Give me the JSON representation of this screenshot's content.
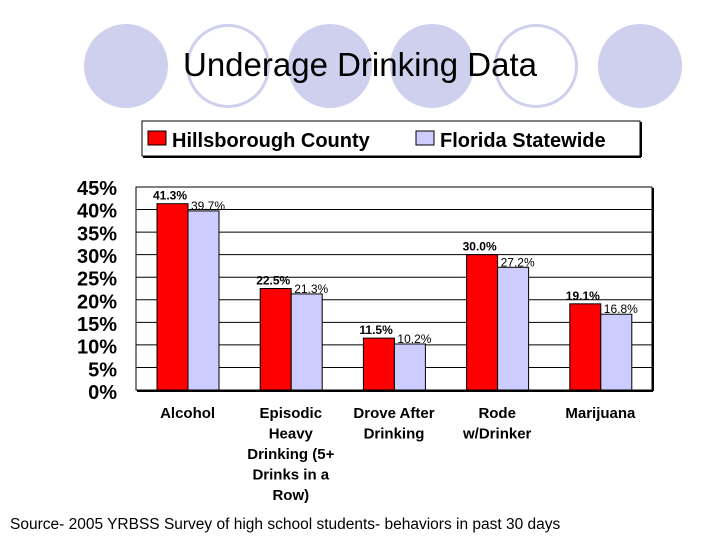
{
  "title": "Underage Drinking Data",
  "source": "Source- 2005 YRBSS Survey of high school students- behaviors in past 30 days",
  "colors": {
    "hillsborough": "#ff0000",
    "florida": "#ccccff",
    "decor": "#cfd0ee"
  },
  "chart_data": {
    "type": "bar",
    "categories": [
      [
        "Alcohol"
      ],
      [
        "Episodic",
        "Heavy",
        "Drinking (5+",
        "Drinks in a",
        "Row)"
      ],
      [
        "Drove After",
        "Drinking"
      ],
      [
        "Rode",
        "w/Drinker"
      ],
      [
        "Marijuana"
      ]
    ],
    "series": [
      {
        "name": "Hillsborough County",
        "values": [
          41.3,
          22.5,
          11.5,
          30.0,
          19.1
        ],
        "labels": [
          "41.3%",
          "22.5%",
          "11.5%",
          "30.0%",
          "19.1%"
        ]
      },
      {
        "name": "Florida Statewide",
        "values": [
          39.7,
          21.3,
          10.2,
          27.2,
          16.8
        ],
        "labels": [
          "39.7%",
          "21.3%",
          "10.2%",
          "27.2%",
          "16.8%"
        ]
      }
    ],
    "yticks": [
      "45%",
      "40%",
      "35%",
      "30%",
      "25%",
      "20%",
      "15%",
      "10%",
      "5%",
      "0%"
    ],
    "ylim": [
      0,
      45
    ],
    "legend_position": "top",
    "grid": true
  }
}
